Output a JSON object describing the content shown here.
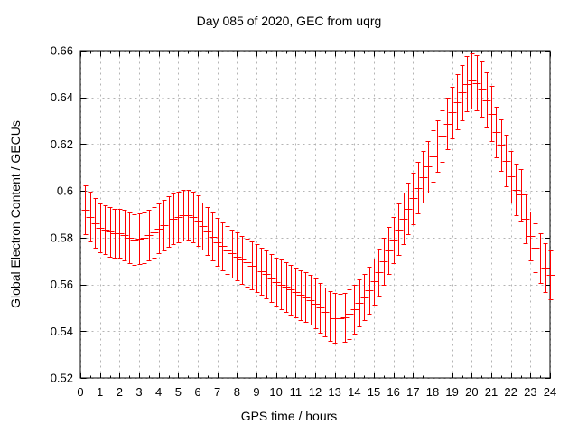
{
  "chart_data": {
    "type": "scatter",
    "style": "yerrorbars",
    "title": "Day 085 of 2020, GEC from uqrg",
    "xlabel": "GPS time / hours",
    "ylabel": "Global Electron Content / GECUs",
    "xlim": [
      0,
      24
    ],
    "ylim": [
      0.52,
      0.66
    ],
    "grid": true,
    "legend": "none",
    "colors": {
      "series": "#ff0000",
      "grid": "#b4b4b4",
      "frame": "#000000",
      "text": "#000000",
      "background": "#ffffff"
    },
    "x_ticks": {
      "values": [
        0,
        1,
        2,
        3,
        4,
        5,
        6,
        7,
        8,
        9,
        10,
        11,
        12,
        13,
        14,
        15,
        16,
        17,
        18,
        19,
        20,
        21,
        22,
        23,
        24
      ],
      "labels": [
        "0",
        "1",
        "2",
        "3",
        "4",
        "5",
        "6",
        "7",
        "8",
        "9",
        "10",
        "11",
        "12",
        "13",
        "14",
        "15",
        "16",
        "17",
        "18",
        "19",
        "20",
        "21",
        "22",
        "23",
        "24"
      ],
      "minor_step": 0.5
    },
    "y_ticks": {
      "values": [
        0.52,
        0.54,
        0.56,
        0.58,
        0.6,
        0.62,
        0.64,
        0.66
      ],
      "labels": [
        "0.52",
        "0.54",
        "0.56",
        "0.58",
        "0.6",
        "0.62",
        "0.64",
        "0.66"
      ]
    },
    "series": [
      {
        "name": "GEC from uqrg",
        "x": [
          0.25,
          0.5,
          0.75,
          1,
          1.25,
          1.5,
          1.75,
          2,
          2.25,
          2.5,
          2.75,
          3,
          3.25,
          3.5,
          3.75,
          4,
          4.25,
          4.5,
          4.75,
          5,
          5.25,
          5.5,
          5.75,
          6,
          6.25,
          6.5,
          6.75,
          7,
          7.25,
          7.5,
          7.75,
          8,
          8.25,
          8.5,
          8.75,
          9,
          9.25,
          9.5,
          9.75,
          10,
          10.25,
          10.5,
          10.75,
          11,
          11.25,
          11.5,
          11.75,
          12,
          12.25,
          12.5,
          12.75,
          13,
          13.25,
          13.5,
          13.75,
          14,
          14.25,
          14.5,
          14.75,
          15,
          15.25,
          15.5,
          15.75,
          16,
          16.25,
          16.5,
          16.75,
          17,
          17.25,
          17.5,
          17.75,
          18,
          18.25,
          18.5,
          18.75,
          19,
          19.25,
          19.5,
          19.75,
          20,
          20.25,
          20.5,
          20.75,
          21,
          21.25,
          21.5,
          21.75,
          22,
          22.25,
          22.5,
          22.75,
          23,
          23.25,
          23.5,
          23.75,
          24
        ],
        "y": [
          0.592,
          0.589,
          0.5863,
          0.5843,
          0.5833,
          0.5825,
          0.5818,
          0.582,
          0.581,
          0.58,
          0.5792,
          0.5794,
          0.5801,
          0.5811,
          0.5824,
          0.584,
          0.5855,
          0.5868,
          0.588,
          0.589,
          0.5896,
          0.5898,
          0.5889,
          0.5872,
          0.585,
          0.5828,
          0.5805,
          0.5782,
          0.5763,
          0.5746,
          0.5732,
          0.5719,
          0.5706,
          0.5694,
          0.5681,
          0.5669,
          0.5656,
          0.5643,
          0.5627,
          0.5611,
          0.56,
          0.5589,
          0.5578,
          0.5566,
          0.5555,
          0.5545,
          0.5533,
          0.5519,
          0.5501,
          0.5482,
          0.5466,
          0.5456,
          0.5454,
          0.5459,
          0.5473,
          0.5494,
          0.552,
          0.5546,
          0.5575,
          0.5612,
          0.5652,
          0.5698,
          0.5744,
          0.579,
          0.5836,
          0.5881,
          0.5925,
          0.5969,
          0.6014,
          0.6059,
          0.6104,
          0.6148,
          0.6192,
          0.6236,
          0.6288,
          0.6336,
          0.638,
          0.6422,
          0.6458,
          0.6472,
          0.6462,
          0.6437,
          0.6388,
          0.633,
          0.6252,
          0.6196,
          0.613,
          0.6062,
          0.6006,
          0.5984,
          0.588,
          0.5806,
          0.5756,
          0.5712,
          0.5673,
          0.564
        ],
        "yerr": [
          0.0105,
          0.0105,
          0.0105,
          0.0105,
          0.0105,
          0.0105,
          0.0105,
          0.0105,
          0.0108,
          0.0108,
          0.0108,
          0.0108,
          0.0108,
          0.0108,
          0.0108,
          0.0108,
          0.0108,
          0.0108,
          0.0108,
          0.0108,
          0.0108,
          0.0108,
          0.0108,
          0.0108,
          0.0102,
          0.0102,
          0.0102,
          0.0102,
          0.0102,
          0.0102,
          0.0102,
          0.0102,
          0.0102,
          0.0102,
          0.0102,
          0.0102,
          0.0102,
          0.0102,
          0.0102,
          0.0102,
          0.0106,
          0.0106,
          0.0106,
          0.0106,
          0.0106,
          0.0106,
          0.0106,
          0.0106,
          0.0106,
          0.0106,
          0.0106,
          0.0106,
          0.0106,
          0.0106,
          0.0106,
          0.0106,
          0.01,
          0.01,
          0.01,
          0.01,
          0.01,
          0.01,
          0.01,
          0.01,
          0.011,
          0.011,
          0.011,
          0.011,
          0.011,
          0.011,
          0.011,
          0.011,
          0.011,
          0.011,
          0.011,
          0.011,
          0.0118,
          0.0118,
          0.0118,
          0.0118,
          0.0118,
          0.0118,
          0.0118,
          0.0118,
          0.011,
          0.011,
          0.011,
          0.011,
          0.011,
          0.011,
          0.0105,
          0.0105,
          0.0105,
          0.0105,
          0.0105,
          0.0105
        ]
      }
    ]
  }
}
